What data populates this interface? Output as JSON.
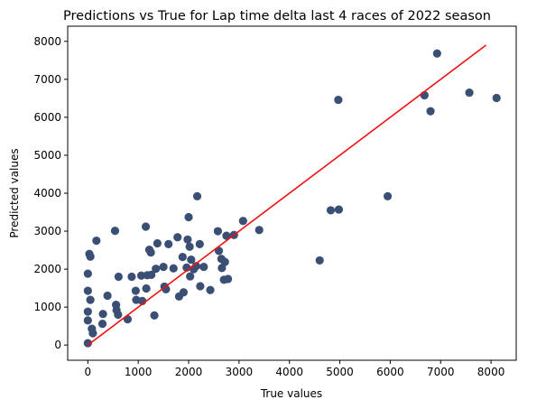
{
  "chart_data": {
    "type": "scatter",
    "title": "Predictions vs True for Lap time delta last 4 races of 2022 season",
    "xlabel": "True values",
    "ylabel": "Predicted values",
    "xlim": [
      -400,
      8500
    ],
    "ylim": [
      -400,
      8400
    ],
    "xticks": [
      0,
      1000,
      2000,
      3000,
      4000,
      5000,
      6000,
      7000,
      8000
    ],
    "yticks": [
      0,
      1000,
      2000,
      3000,
      4000,
      5000,
      6000,
      7000,
      8000
    ],
    "grid": false,
    "colors": {
      "points": "#3b4f74",
      "line": "#ee1111"
    },
    "fit_line": {
      "x": [
        0,
        7900
      ],
      "y": [
        0,
        7900
      ]
    },
    "series": [
      {
        "points": [
          [
            0,
            50
          ],
          [
            0,
            650
          ],
          [
            0,
            880
          ],
          [
            0,
            1430
          ],
          [
            0,
            1880
          ],
          [
            30,
            2400
          ],
          [
            50,
            2330
          ],
          [
            50,
            1190
          ],
          [
            80,
            430
          ],
          [
            100,
            310
          ],
          [
            170,
            2750
          ],
          [
            290,
            560
          ],
          [
            300,
            820
          ],
          [
            390,
            1300
          ],
          [
            540,
            3010
          ],
          [
            560,
            1060
          ],
          [
            570,
            920
          ],
          [
            600,
            800
          ],
          [
            610,
            1800
          ],
          [
            790,
            680
          ],
          [
            870,
            1800
          ],
          [
            950,
            1430
          ],
          [
            960,
            1190
          ],
          [
            1060,
            1830
          ],
          [
            1080,
            1160
          ],
          [
            1150,
            3120
          ],
          [
            1160,
            1490
          ],
          [
            1180,
            1840
          ],
          [
            1220,
            2510
          ],
          [
            1250,
            2440
          ],
          [
            1260,
            1850
          ],
          [
            1320,
            780
          ],
          [
            1350,
            2010
          ],
          [
            1380,
            2680
          ],
          [
            1500,
            2060
          ],
          [
            1520,
            1540
          ],
          [
            1550,
            1470
          ],
          [
            1600,
            2660
          ],
          [
            1700,
            2020
          ],
          [
            1780,
            2840
          ],
          [
            1810,
            1280
          ],
          [
            1880,
            2320
          ],
          [
            1900,
            1390
          ],
          [
            1960,
            2040
          ],
          [
            1980,
            2780
          ],
          [
            2000,
            3370
          ],
          [
            2020,
            2590
          ],
          [
            2030,
            1810
          ],
          [
            2050,
            2250
          ],
          [
            2100,
            2000
          ],
          [
            2150,
            2080
          ],
          [
            2170,
            3920
          ],
          [
            2220,
            2660
          ],
          [
            2230,
            1550
          ],
          [
            2300,
            2060
          ],
          [
            2430,
            1450
          ],
          [
            2580,
            3000
          ],
          [
            2600,
            2480
          ],
          [
            2650,
            2270
          ],
          [
            2660,
            2030
          ],
          [
            2700,
            1720
          ],
          [
            2720,
            2190
          ],
          [
            2750,
            2880
          ],
          [
            2780,
            1740
          ],
          [
            2900,
            2900
          ],
          [
            3080,
            3270
          ],
          [
            3400,
            3030
          ],
          [
            4600,
            2230
          ],
          [
            4820,
            3550
          ],
          [
            4970,
            6460
          ],
          [
            4980,
            3570
          ],
          [
            5950,
            3920
          ],
          [
            6680,
            6580
          ],
          [
            6800,
            6160
          ],
          [
            6930,
            7680
          ],
          [
            7570,
            6650
          ],
          [
            8110,
            6510
          ]
        ]
      }
    ]
  }
}
